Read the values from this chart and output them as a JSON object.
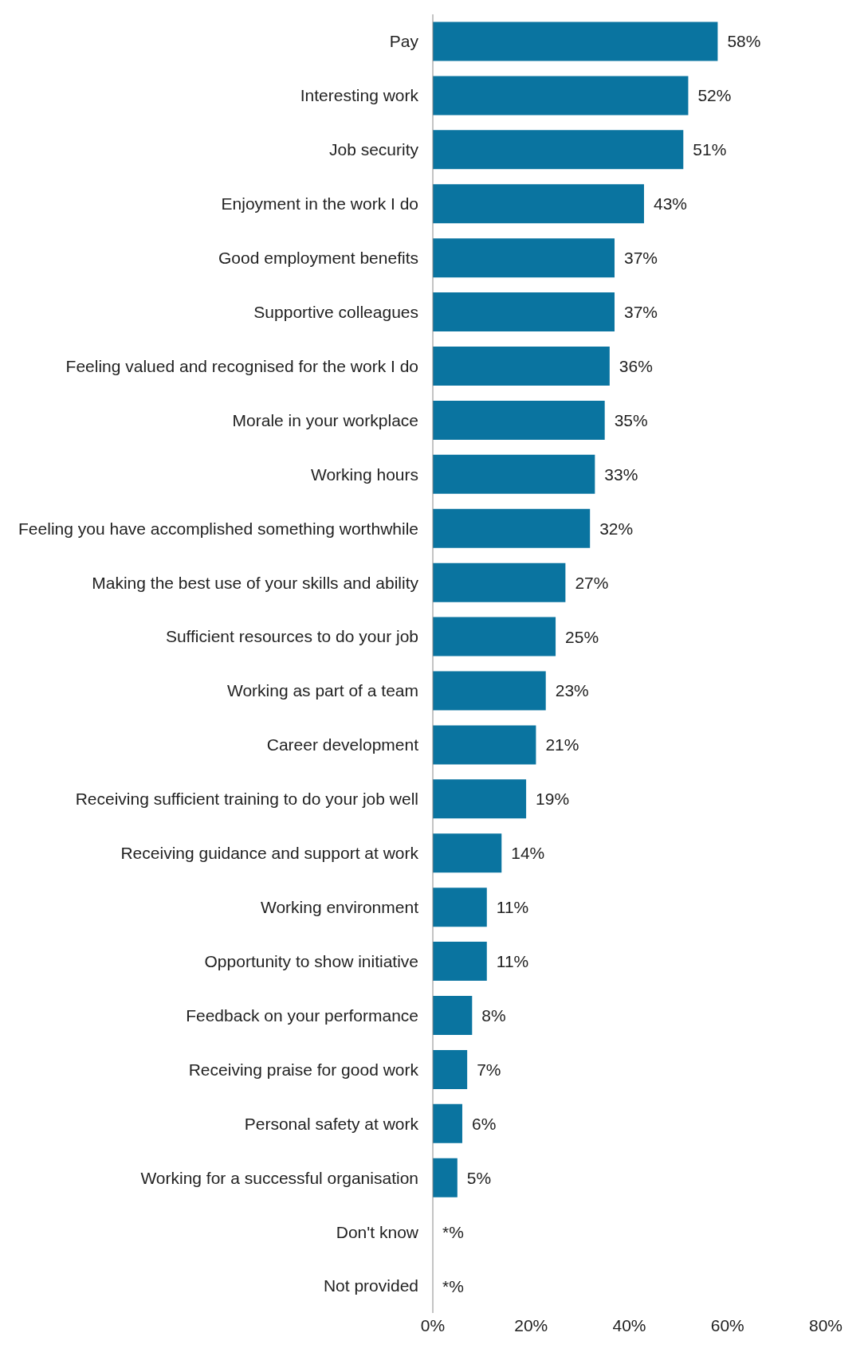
{
  "chart_data": {
    "type": "bar",
    "orientation": "horizontal",
    "categories": [
      "Pay",
      "Interesting work",
      "Job security",
      "Enjoyment in the work I do",
      "Good employment benefits",
      "Supportive colleagues",
      "Feeling valued and recognised for the work I do",
      "Morale in your workplace",
      "Working hours",
      "Feeling you have accomplished something worthwhile",
      "Making the best use of your skills and ability",
      "Sufficient resources to do your job",
      "Working as part of a team",
      "Career development",
      "Receiving sufficient training to do your job well",
      "Receiving guidance and support at work",
      "Working environment",
      "Opportunity to show initiative",
      "Feedback on your performance",
      "Receiving praise for good work",
      "Personal safety at work",
      "Working for a successful organisation",
      "Don't know",
      "Not provided"
    ],
    "values": [
      58,
      52,
      51,
      43,
      37,
      37,
      36,
      35,
      33,
      32,
      27,
      25,
      23,
      21,
      19,
      14,
      11,
      11,
      8,
      7,
      6,
      5,
      0,
      0
    ],
    "value_labels": [
      "58%",
      "52%",
      "51%",
      "43%",
      "37%",
      "37%",
      "36%",
      "35%",
      "33%",
      "32%",
      "27%",
      "25%",
      "23%",
      "21%",
      "19%",
      "14%",
      "11%",
      "11%",
      "8%",
      "7%",
      "6%",
      "5%",
      "*%",
      "*%"
    ],
    "color": "#0a74a0",
    "xlim": [
      0,
      80
    ],
    "xticks": [
      {
        "value": 0,
        "label": "0%"
      },
      {
        "value": 20,
        "label": "20%"
      },
      {
        "value": 40,
        "label": "40%"
      },
      {
        "value": 60,
        "label": "60%"
      },
      {
        "value": 80,
        "label": "80%"
      }
    ],
    "grid": false,
    "legend": false
  }
}
